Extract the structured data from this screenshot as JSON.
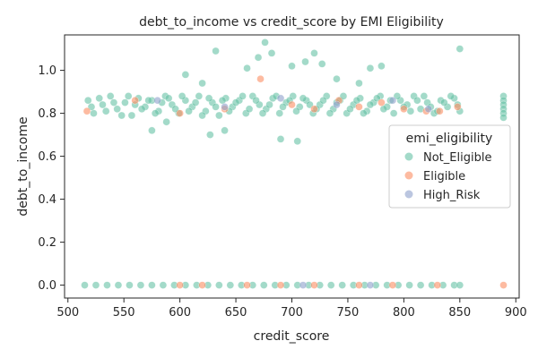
{
  "chart_data": {
    "type": "scatter",
    "title": "debt_to_income vs credit_score by EMI Eligibility",
    "xlabel": "credit_score",
    "ylabel": "debt_to_income",
    "xlim": [
      497,
      903
    ],
    "ylim": [
      -0.06,
      1.165
    ],
    "xticks": [
      "500",
      "550",
      "600",
      "650",
      "700",
      "750",
      "800",
      "850",
      "900"
    ],
    "yticks": [
      "0.0",
      "0.2",
      "0.4",
      "0.6",
      "0.8",
      "1.0"
    ],
    "grid": false,
    "legend": {
      "title": "emi_eligibility",
      "placement": "center-right",
      "entries": [
        "Not_Eligible",
        "Eligible",
        "High_Risk"
      ]
    },
    "colors": {
      "Not_Eligible": "#66c2a5",
      "Eligible": "#fc8d62",
      "High_Risk": "#8da0cb"
    },
    "series": [
      {
        "name": "Not_Eligible",
        "points": [
          [
            515,
            0.0
          ],
          [
            525,
            0.0
          ],
          [
            535,
            0.0
          ],
          [
            545,
            0.0
          ],
          [
            555,
            0.0
          ],
          [
            565,
            0.0
          ],
          [
            575,
            0.0
          ],
          [
            585,
            0.0
          ],
          [
            595,
            0.0
          ],
          [
            605,
            0.0
          ],
          [
            615,
            0.0
          ],
          [
            625,
            0.0
          ],
          [
            635,
            0.0
          ],
          [
            645,
            0.0
          ],
          [
            655,
            0.0
          ],
          [
            665,
            0.0
          ],
          [
            675,
            0.0
          ],
          [
            685,
            0.0
          ],
          [
            695,
            0.0
          ],
          [
            705,
            0.0
          ],
          [
            715,
            0.0
          ],
          [
            725,
            0.0
          ],
          [
            735,
            0.0
          ],
          [
            745,
            0.0
          ],
          [
            755,
            0.0
          ],
          [
            765,
            0.0
          ],
          [
            775,
            0.0
          ],
          [
            785,
            0.0
          ],
          [
            795,
            0.0
          ],
          [
            805,
            0.0
          ],
          [
            815,
            0.0
          ],
          [
            825,
            0.0
          ],
          [
            835,
            0.0
          ],
          [
            845,
            0.0
          ],
          [
            850,
            0.0
          ],
          [
            518,
            0.86
          ],
          [
            523,
            0.8
          ],
          [
            531,
            0.84
          ],
          [
            538,
            0.88
          ],
          [
            544,
            0.82
          ],
          [
            551,
            0.85
          ],
          [
            557,
            0.79
          ],
          [
            563,
            0.87
          ],
          [
            569,
            0.83
          ],
          [
            575,
            0.86
          ],
          [
            581,
            0.81
          ],
          [
            587,
            0.88
          ],
          [
            593,
            0.84
          ],
          [
            599,
            0.8
          ],
          [
            605,
            0.86
          ],
          [
            611,
            0.83
          ],
          [
            617,
            0.88
          ],
          [
            623,
            0.81
          ],
          [
            629,
            0.85
          ],
          [
            635,
            0.79
          ],
          [
            641,
            0.87
          ],
          [
            647,
            0.83
          ],
          [
            653,
            0.86
          ],
          [
            659,
            0.8
          ],
          [
            665,
            0.88
          ],
          [
            671,
            0.84
          ],
          [
            677,
            0.82
          ],
          [
            683,
            0.87
          ],
          [
            689,
            0.8
          ],
          [
            695,
            0.85
          ],
          [
            701,
            0.88
          ],
          [
            707,
            0.83
          ],
          [
            713,
            0.86
          ],
          [
            719,
            0.8
          ],
          [
            725,
            0.84
          ],
          [
            731,
            0.88
          ],
          [
            737,
            0.82
          ],
          [
            743,
            0.86
          ],
          [
            749,
            0.8
          ],
          [
            755,
            0.84
          ],
          [
            761,
            0.87
          ],
          [
            767,
            0.81
          ],
          [
            773,
            0.85
          ],
          [
            779,
            0.88
          ],
          [
            785,
            0.83
          ],
          [
            791,
            0.8
          ],
          [
            797,
            0.86
          ],
          [
            803,
            0.84
          ],
          [
            809,
            0.88
          ],
          [
            815,
            0.82
          ],
          [
            821,
            0.85
          ],
          [
            827,
            0.8
          ],
          [
            833,
            0.86
          ],
          [
            839,
            0.83
          ],
          [
            845,
            0.87
          ],
          [
            850,
            0.81
          ],
          [
            521,
            0.83
          ],
          [
            528,
            0.87
          ],
          [
            534,
            0.81
          ],
          [
            541,
            0.85
          ],
          [
            548,
            0.79
          ],
          [
            554,
            0.88
          ],
          [
            560,
            0.84
          ],
          [
            566,
            0.82
          ],
          [
            572,
            0.86
          ],
          [
            578,
            0.8
          ],
          [
            584,
            0.85
          ],
          [
            590,
            0.87
          ],
          [
            596,
            0.82
          ],
          [
            602,
            0.88
          ],
          [
            608,
            0.81
          ],
          [
            614,
            0.85
          ],
          [
            620,
            0.79
          ],
          [
            626,
            0.87
          ],
          [
            632,
            0.83
          ],
          [
            638,
            0.86
          ],
          [
            644,
            0.81
          ],
          [
            650,
            0.85
          ],
          [
            656,
            0.88
          ],
          [
            662,
            0.82
          ],
          [
            668,
            0.86
          ],
          [
            674,
            0.8
          ],
          [
            680,
            0.84
          ],
          [
            686,
            0.88
          ],
          [
            692,
            0.83
          ],
          [
            698,
            0.86
          ],
          [
            704,
            0.81
          ],
          [
            710,
            0.87
          ],
          [
            716,
            0.84
          ],
          [
            722,
            0.82
          ],
          [
            728,
            0.86
          ],
          [
            734,
            0.8
          ],
          [
            740,
            0.85
          ],
          [
            746,
            0.88
          ],
          [
            752,
            0.82
          ],
          [
            758,
            0.86
          ],
          [
            764,
            0.8
          ],
          [
            770,
            0.84
          ],
          [
            776,
            0.87
          ],
          [
            782,
            0.82
          ],
          [
            788,
            0.86
          ],
          [
            794,
            0.88
          ],
          [
            800,
            0.83
          ],
          [
            806,
            0.81
          ],
          [
            812,
            0.86
          ],
          [
            818,
            0.88
          ],
          [
            824,
            0.83
          ],
          [
            830,
            0.81
          ],
          [
            836,
            0.85
          ],
          [
            842,
            0.88
          ],
          [
            848,
            0.84
          ],
          [
            575,
            0.72
          ],
          [
            588,
            0.76
          ],
          [
            605,
            0.98
          ],
          [
            620,
            0.94
          ],
          [
            627,
            0.7
          ],
          [
            640,
            0.72
          ],
          [
            660,
            1.01
          ],
          [
            670,
            1.06
          ],
          [
            682,
            1.08
          ],
          [
            690,
            0.68
          ],
          [
            700,
            1.02
          ],
          [
            705,
            0.67
          ],
          [
            712,
            1.04
          ],
          [
            720,
            1.08
          ],
          [
            727,
            1.03
          ],
          [
            770,
            1.01
          ],
          [
            780,
            1.02
          ],
          [
            850,
            1.1
          ],
          [
            632,
            1.09
          ],
          [
            676,
            1.13
          ],
          [
            740,
            0.96
          ],
          [
            760,
            0.94
          ],
          [
            889,
            0.88
          ],
          [
            889,
            0.86
          ],
          [
            889,
            0.84
          ],
          [
            889,
            0.82
          ],
          [
            889,
            0.8
          ],
          [
            889,
            0.78
          ]
        ]
      },
      {
        "name": "Eligible",
        "points": [
          [
            517,
            0.81
          ],
          [
            560,
            0.86
          ],
          [
            600,
            0.8
          ],
          [
            640,
            0.82
          ],
          [
            672,
            0.96
          ],
          [
            700,
            0.84
          ],
          [
            720,
            0.82
          ],
          [
            742,
            0.86
          ],
          [
            760,
            0.83
          ],
          [
            780,
            0.85
          ],
          [
            800,
            0.82
          ],
          [
            820,
            0.81
          ],
          [
            832,
            0.81
          ],
          [
            848,
            0.83
          ],
          [
            600,
            0.0
          ],
          [
            620,
            0.0
          ],
          [
            660,
            0.0
          ],
          [
            690,
            0.0
          ],
          [
            720,
            0.0
          ],
          [
            760,
            0.0
          ],
          [
            790,
            0.0
          ],
          [
            830,
            0.0
          ],
          [
            889,
            0.0
          ]
        ]
      },
      {
        "name": "High_Risk",
        "points": [
          [
            580,
            0.86
          ],
          [
            640,
            0.83
          ],
          [
            690,
            0.87
          ],
          [
            740,
            0.84
          ],
          [
            790,
            0.86
          ],
          [
            822,
            0.82
          ],
          [
            710,
            0.0
          ],
          [
            770,
            0.0
          ]
        ]
      }
    ]
  }
}
